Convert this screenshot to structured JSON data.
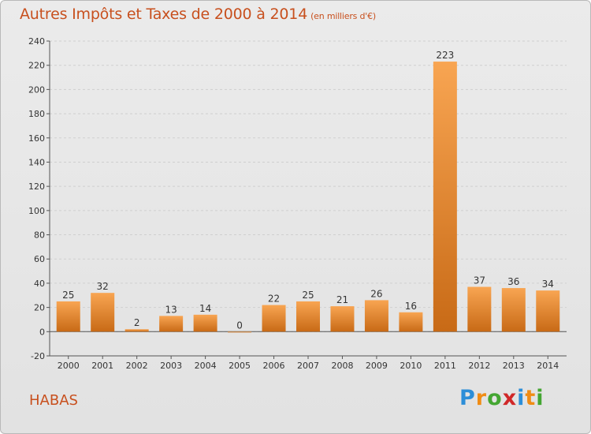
{
  "title": "Autres Impôts et Taxes de 2000 à 2014",
  "subtitle": "(en milliers d'€)",
  "location": "HABAS",
  "logo": {
    "letters": [
      "P",
      "r",
      "o",
      "x",
      "i",
      "t",
      "i"
    ],
    "colors": [
      "#2c8ed8",
      "#f08c14",
      "#44a632",
      "#d02828",
      "#2c8ed8",
      "#f08c14",
      "#44a632"
    ]
  },
  "colors": {
    "bar_top": "#f8a552",
    "bar_bottom": "#c86a16",
    "title": "#c8501e"
  },
  "chart_data": {
    "type": "bar",
    "title": "Autres Impôts et Taxes de 2000 à 2014",
    "subtitle": "(en milliers d'€)",
    "categories": [
      "2000",
      "2001",
      "2002",
      "2003",
      "2004",
      "2005",
      "2006",
      "2007",
      "2008",
      "2009",
      "2010",
      "2011",
      "2012",
      "2013",
      "2014"
    ],
    "values": [
      25,
      32,
      2,
      13,
      14,
      0,
      22,
      25,
      21,
      26,
      16,
      223,
      37,
      36,
      34
    ],
    "ylim": [
      -20,
      240
    ],
    "yticks": [
      -20,
      0,
      20,
      40,
      60,
      80,
      100,
      120,
      140,
      160,
      180,
      200,
      220,
      240
    ],
    "grid": true,
    "xlabel": "",
    "ylabel": ""
  }
}
